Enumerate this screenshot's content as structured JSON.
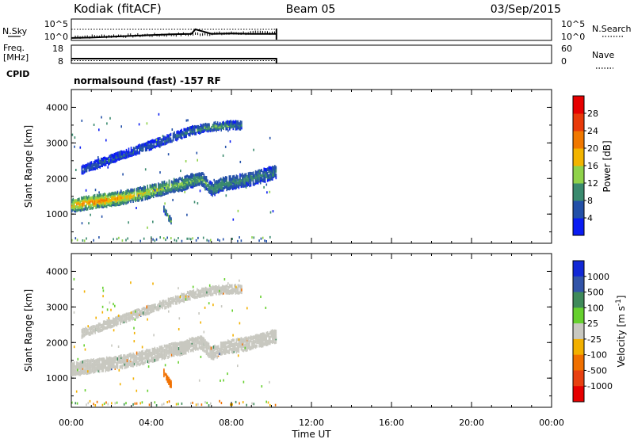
{
  "header": {
    "station": "Kodiak (fitACF)",
    "beam": "Beam 05",
    "date": "03/Sep/2015"
  },
  "left_labels": {
    "nsky": "N.Sky",
    "freq_line1": "Freq.",
    "freq_line2": "[MHz]",
    "cpid": "CPID"
  },
  "right_labels": {
    "nsearch": "N.Search",
    "nave": "Nave"
  },
  "cpid_text": "normalsound (fast) -157 RF",
  "colors": {
    "power": [
      "#0a1cf2",
      "#2350a8",
      "#3a8a6e",
      "#8fd24a",
      "#f2b400",
      "#f07800",
      "#e83a0a",
      "#e60000"
    ],
    "velocity": [
      "#1228d6",
      "#3254a8",
      "#3f8a5a",
      "#66d02e",
      "#c8c8c0",
      "#f2b000",
      "#f07000",
      "#e84010",
      "#e60000"
    ]
  },
  "chart_data": [
    {
      "type": "line",
      "panel": "N.Sky / N.Search",
      "ylabel": "N.Sky",
      "y2label": "N.Search",
      "ytick_labels": [
        "10^5",
        "10^0"
      ],
      "y2tick_labels": [
        "10^5",
        "10^0"
      ],
      "x_range_hours": [
        0,
        24
      ],
      "data_end_hours": 10.25,
      "x": [
        0,
        1,
        2,
        3,
        4,
        5,
        6,
        6.2,
        7,
        8,
        9,
        10,
        10.25
      ],
      "series": [
        {
          "name": "N.Sky",
          "values": [
            0.4,
            0.5,
            0.7,
            0.9,
            1.1,
            1.3,
            1.4,
            2.5,
            1.4,
            1.5,
            1.4,
            1.4,
            1.4
          ]
        }
      ]
    },
    {
      "type": "line",
      "panel": "Frequency / Nave",
      "ylabel": "Freq. [MHz]",
      "y2label": "Nave",
      "ylim": [
        8,
        18
      ],
      "ytick_labels": [
        "18",
        "8"
      ],
      "y2lim": [
        0,
        60
      ],
      "y2tick_labels": [
        "60",
        "0"
      ],
      "x": [
        0,
        10.25
      ],
      "series": [
        {
          "name": "Freq.",
          "values": [
            10.3,
            10.3
          ]
        },
        {
          "name": "Nave",
          "values": [
            14,
            14
          ]
        }
      ]
    },
    {
      "type": "heatmap",
      "panel": "Power",
      "ylabel": "Slant Range [km]",
      "ylim": [
        180,
        4500
      ],
      "yticks": [
        1000,
        2000,
        3000,
        4000
      ],
      "colorbar_label": "Power [dB]",
      "colorbar_ticks": [
        4,
        8,
        12,
        16,
        20,
        24,
        28
      ],
      "features": [
        {
          "name": "near-range band",
          "x": [
            0,
            1,
            2,
            3,
            4,
            5,
            5.5,
            6,
            6.5,
            7,
            7.5,
            8,
            9,
            10.2
          ],
          "y": [
            1250,
            1350,
            1420,
            1520,
            1650,
            1800,
            1850,
            1950,
            2000,
            1700,
            1850,
            1900,
            2000,
            2200
          ],
          "value_db": [
            20,
            22,
            21,
            18,
            16,
            14,
            13,
            12,
            12,
            11,
            12,
            10,
            10,
            9
          ]
        },
        {
          "name": "far-range band",
          "x": [
            0.5,
            1,
            2,
            3,
            4,
            5,
            6,
            7,
            8,
            8.5
          ],
          "y": [
            2250,
            2350,
            2550,
            2750,
            2950,
            3150,
            3350,
            3450,
            3500,
            3500
          ],
          "value_db": [
            6,
            6,
            7,
            7,
            7,
            8,
            10,
            12,
            10,
            9
          ]
        },
        {
          "name": "short feature",
          "x": [
            4.6,
            4.8,
            5.0
          ],
          "y": [
            1150,
            950,
            780
          ],
          "value_db": [
            10,
            12,
            14
          ]
        }
      ]
    },
    {
      "type": "heatmap",
      "panel": "Velocity",
      "ylabel": "Slant Range [km]",
      "xlabel": "Time UT",
      "ylim": [
        180,
        4500
      ],
      "yticks": [
        1000,
        2000,
        3000,
        4000
      ],
      "xticks": [
        "00:00",
        "04:00",
        "08:00",
        "12:00",
        "16:00",
        "20:00",
        "00:00"
      ],
      "colorbar_label": "Velocity [m s^-1]",
      "colorbar_ticks": [
        "1000",
        "500",
        "100",
        "25",
        "-25",
        "-100",
        "-500",
        "-1000"
      ],
      "features": [
        {
          "name": "near-range band",
          "x": [
            0,
            1,
            2,
            3,
            4,
            5,
            5.5,
            6,
            6.5,
            7,
            7.5,
            8,
            9,
            10.2
          ],
          "y": [
            1250,
            1350,
            1420,
            1520,
            1650,
            1800,
            1850,
            1950,
            2000,
            1700,
            1850,
            1900,
            2000,
            2200
          ],
          "velocity": [
            0,
            0,
            0,
            0,
            0,
            10,
            0,
            0,
            0,
            0,
            0,
            0,
            0,
            0
          ]
        },
        {
          "name": "far-range band",
          "x": [
            0.5,
            1,
            2,
            3,
            4,
            5,
            6,
            7,
            8,
            8.5
          ],
          "y": [
            2250,
            2350,
            2550,
            2750,
            2950,
            3150,
            3350,
            3450,
            3500,
            3500
          ],
          "velocity": [
            0,
            0,
            0,
            0,
            0,
            0,
            0,
            0,
            0,
            0
          ]
        },
        {
          "name": "short feature",
          "x": [
            4.6,
            4.8,
            5.0
          ],
          "y": [
            1150,
            950,
            780
          ],
          "velocity": [
            -150,
            -300,
            -500
          ]
        }
      ]
    }
  ]
}
